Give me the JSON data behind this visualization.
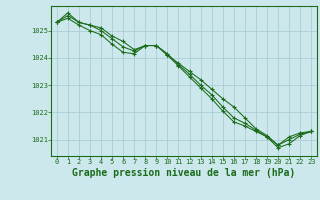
{
  "background_color": "#cce8ec",
  "grid_color": "#aacdd4",
  "line_color": "#1a6b1a",
  "marker_color": "#1a6b1a",
  "title": "Graphe pression niveau de la mer (hPa)",
  "title_fontsize": 7.0,
  "title_color": "#1a6b1a",
  "tick_color": "#1a6b1a",
  "ylim": [
    1020.4,
    1025.9
  ],
  "xlim": [
    -0.5,
    23.5
  ],
  "yticks": [
    1021,
    1022,
    1023,
    1024,
    1025
  ],
  "xticks": [
    0,
    1,
    2,
    3,
    4,
    5,
    6,
    7,
    8,
    9,
    10,
    11,
    12,
    13,
    14,
    15,
    16,
    17,
    18,
    19,
    20,
    21,
    22,
    23
  ],
  "series": [
    [
      1025.3,
      1025.65,
      1025.3,
      1025.2,
      1025.1,
      1024.8,
      1024.6,
      1024.3,
      1024.45,
      1024.45,
      1024.1,
      1023.8,
      1023.5,
      1023.2,
      1022.85,
      1022.5,
      1022.2,
      1021.8,
      1021.4,
      1021.15,
      1020.8,
      1021.1,
      1021.25,
      1021.3
    ],
    [
      1025.3,
      1025.45,
      1025.2,
      1025.0,
      1024.85,
      1024.5,
      1024.2,
      1024.15,
      1024.45,
      1024.45,
      1024.1,
      1023.7,
      1023.3,
      1022.9,
      1022.5,
      1022.05,
      1021.65,
      1021.5,
      1021.3,
      1021.1,
      1020.7,
      1020.85,
      1021.15,
      1021.3
    ],
    [
      1025.3,
      1025.55,
      1025.3,
      1025.2,
      1025.0,
      1024.7,
      1024.4,
      1024.25,
      1024.45,
      1024.45,
      1024.15,
      1023.75,
      1023.4,
      1023.0,
      1022.65,
      1022.2,
      1021.8,
      1021.6,
      1021.35,
      1021.1,
      1020.8,
      1021.0,
      1021.2,
      1021.3
    ]
  ]
}
